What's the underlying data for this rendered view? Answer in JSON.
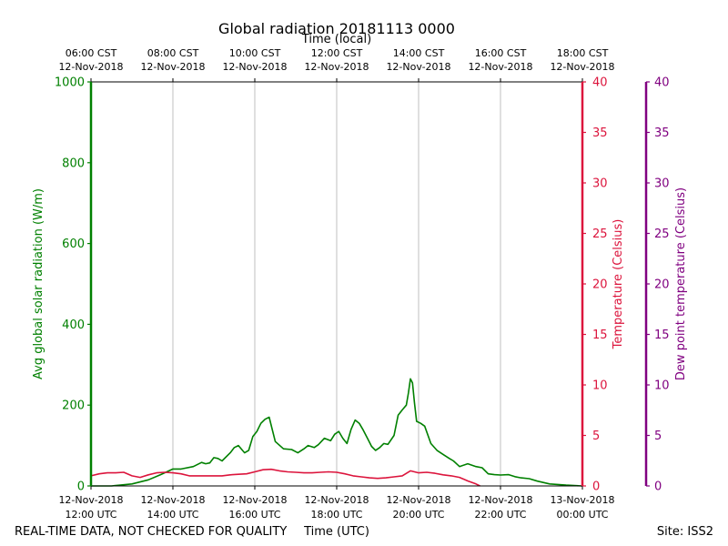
{
  "chart_data": {
    "type": "line",
    "title": "Global radiation 20181113 0000",
    "xlabel": "Time (UTC)",
    "x2label": "Time (local)",
    "xlim_hours_utc": [
      12,
      24
    ],
    "x_ticks_utc": [
      {
        "h": 12,
        "line1": "12-Nov-2018",
        "line2": "12:00 UTC"
      },
      {
        "h": 14,
        "line1": "12-Nov-2018",
        "line2": "14:00 UTC"
      },
      {
        "h": 16,
        "line1": "12-Nov-2018",
        "line2": "16:00 UTC"
      },
      {
        "h": 18,
        "line1": "12-Nov-2018",
        "line2": "18:00 UTC"
      },
      {
        "h": 20,
        "line1": "12-Nov-2018",
        "line2": "20:00 UTC"
      },
      {
        "h": 22,
        "line1": "12-Nov-2018",
        "line2": "22:00 UTC"
      },
      {
        "h": 24,
        "line1": "13-Nov-2018",
        "line2": "00:00 UTC"
      }
    ],
    "x_ticks_local": [
      {
        "h": 12,
        "line1": "06:00 CST",
        "line2": "12-Nov-2018"
      },
      {
        "h": 14,
        "line1": "08:00 CST",
        "line2": "12-Nov-2018"
      },
      {
        "h": 16,
        "line1": "10:00 CST",
        "line2": "12-Nov-2018"
      },
      {
        "h": 18,
        "line1": "12:00 CST",
        "line2": "12-Nov-2018"
      },
      {
        "h": 20,
        "line1": "14:00 CST",
        "line2": "12-Nov-2018"
      },
      {
        "h": 22,
        "line1": "16:00 CST",
        "line2": "12-Nov-2018"
      },
      {
        "h": 24,
        "line1": "18:00 CST",
        "line2": "12-Nov-2018"
      }
    ],
    "axes": {
      "radiation": {
        "label": "Avg global solar radiation (W/m)",
        "ylim": [
          0,
          1000
        ],
        "ticks": [
          0,
          200,
          400,
          600,
          800,
          1000
        ],
        "color": "#008000"
      },
      "temperature": {
        "label": "Temperature (Celsius)",
        "ylim": [
          0,
          40
        ],
        "ticks": [
          0,
          5,
          10,
          15,
          20,
          25,
          30,
          35,
          40
        ],
        "color": "#dc143c"
      },
      "dewpoint": {
        "label": "Dew point temperature (Celsius)",
        "ylim": [
          0,
          40
        ],
        "ticks": [
          0,
          5,
          10,
          15,
          20,
          25,
          30,
          35,
          40
        ],
        "color": "#800080"
      }
    },
    "series": [
      {
        "name": "Avg global solar radiation",
        "axis": "radiation",
        "color": "#008000",
        "x": [
          12.0,
          12.5,
          13.0,
          13.4,
          13.7,
          14.0,
          14.2,
          14.5,
          14.7,
          14.8,
          14.9,
          15.0,
          15.1,
          15.2,
          15.4,
          15.5,
          15.6,
          15.75,
          15.85,
          15.95,
          16.05,
          16.15,
          16.25,
          16.35,
          16.5,
          16.7,
          16.9,
          17.05,
          17.2,
          17.3,
          17.45,
          17.55,
          17.7,
          17.85,
          17.95,
          18.05,
          18.15,
          18.25,
          18.35,
          18.45,
          18.55,
          18.65,
          18.75,
          18.85,
          18.95,
          19.05,
          19.15,
          19.25,
          19.4,
          19.5,
          19.6,
          19.7,
          19.75,
          19.8,
          19.85,
          19.9,
          19.95,
          20.05,
          20.15,
          20.3,
          20.45,
          20.6,
          20.75,
          20.85,
          21.0,
          21.2,
          21.4,
          21.55,
          21.7,
          21.85,
          22.0,
          22.2,
          22.35,
          22.5,
          22.7,
          22.9,
          23.2,
          23.6,
          24.0
        ],
        "values": [
          0,
          0,
          5,
          15,
          28,
          42,
          42,
          48,
          58,
          55,
          57,
          70,
          68,
          62,
          82,
          95,
          100,
          82,
          88,
          122,
          135,
          155,
          165,
          170,
          110,
          92,
          90,
          82,
          92,
          100,
          95,
          102,
          118,
          112,
          128,
          135,
          118,
          105,
          140,
          163,
          155,
          138,
          118,
          98,
          88,
          95,
          105,
          103,
          125,
          175,
          188,
          200,
          230,
          265,
          255,
          205,
          160,
          155,
          148,
          105,
          88,
          78,
          68,
          62,
          48,
          55,
          48,
          45,
          30,
          28,
          27,
          28,
          23,
          20,
          18,
          12,
          5,
          2,
          0
        ]
      },
      {
        "name": "Temperature",
        "axis": "temperature",
        "color": "#dc143c",
        "x": [
          12.0,
          12.2,
          12.4,
          12.6,
          12.8,
          13.0,
          13.2,
          13.4,
          13.6,
          13.8,
          14.0,
          14.2,
          14.4,
          14.6,
          14.8,
          15.0,
          15.2,
          15.4,
          15.6,
          15.8,
          16.0,
          16.2,
          16.4,
          16.6,
          16.8,
          17.0,
          17.2,
          17.4,
          17.6,
          17.8,
          18.0,
          18.2,
          18.4,
          18.6,
          18.8,
          19.0,
          19.2,
          19.4,
          19.6,
          19.8,
          20.0,
          20.2,
          20.4,
          20.6,
          20.8,
          21.0,
          21.2,
          21.4,
          21.5
        ],
        "values": [
          1.0,
          1.2,
          1.3,
          1.3,
          1.35,
          1.0,
          0.85,
          1.1,
          1.3,
          1.35,
          1.3,
          1.2,
          1.0,
          1.0,
          1.0,
          1.0,
          1.0,
          1.1,
          1.15,
          1.2,
          1.4,
          1.6,
          1.65,
          1.5,
          1.4,
          1.35,
          1.3,
          1.3,
          1.35,
          1.4,
          1.35,
          1.2,
          1.0,
          0.9,
          0.8,
          0.75,
          0.8,
          0.9,
          1.0,
          1.5,
          1.3,
          1.35,
          1.25,
          1.1,
          1.0,
          0.85,
          0.5,
          0.2,
          0.0
        ]
      }
    ],
    "footer": {
      "left": "REAL-TIME DATA, NOT CHECKED FOR QUALITY",
      "right": "Site: ISS2"
    }
  }
}
